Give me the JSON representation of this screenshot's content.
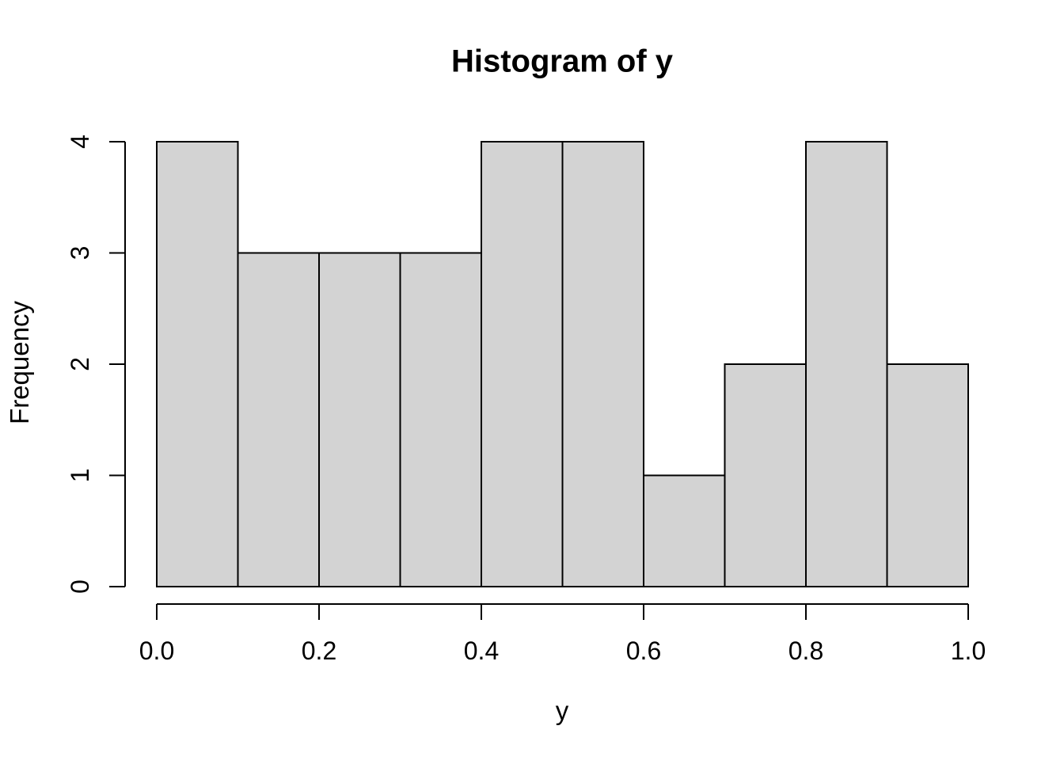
{
  "chart_data": {
    "type": "bar",
    "subtype": "histogram",
    "title": "Histogram of y",
    "xlabel": "y",
    "ylabel": "Frequency",
    "breaks": [
      0.0,
      0.1,
      0.2,
      0.3,
      0.4,
      0.5,
      0.6,
      0.7,
      0.8,
      0.9,
      1.0
    ],
    "counts": [
      4,
      3,
      3,
      3,
      4,
      4,
      1,
      2,
      4,
      2
    ],
    "xlim": [
      0.0,
      1.0
    ],
    "ylim": [
      0,
      4
    ],
    "x_ticks": [
      {
        "value": 0.0,
        "label": "0.0"
      },
      {
        "value": 0.2,
        "label": "0.2"
      },
      {
        "value": 0.4,
        "label": "0.4"
      },
      {
        "value": 0.6,
        "label": "0.6"
      },
      {
        "value": 0.8,
        "label": "0.8"
      },
      {
        "value": 1.0,
        "label": "1.0"
      }
    ],
    "y_ticks": [
      {
        "value": 0,
        "label": "0"
      },
      {
        "value": 1,
        "label": "1"
      },
      {
        "value": 2,
        "label": "2"
      },
      {
        "value": 3,
        "label": "3"
      },
      {
        "value": 4,
        "label": "4"
      }
    ],
    "bar_fill": "#d3d3d3",
    "bar_stroke": "#000000",
    "axis_color": "#000000",
    "background": "#ffffff",
    "grid": false,
    "legend": null
  }
}
